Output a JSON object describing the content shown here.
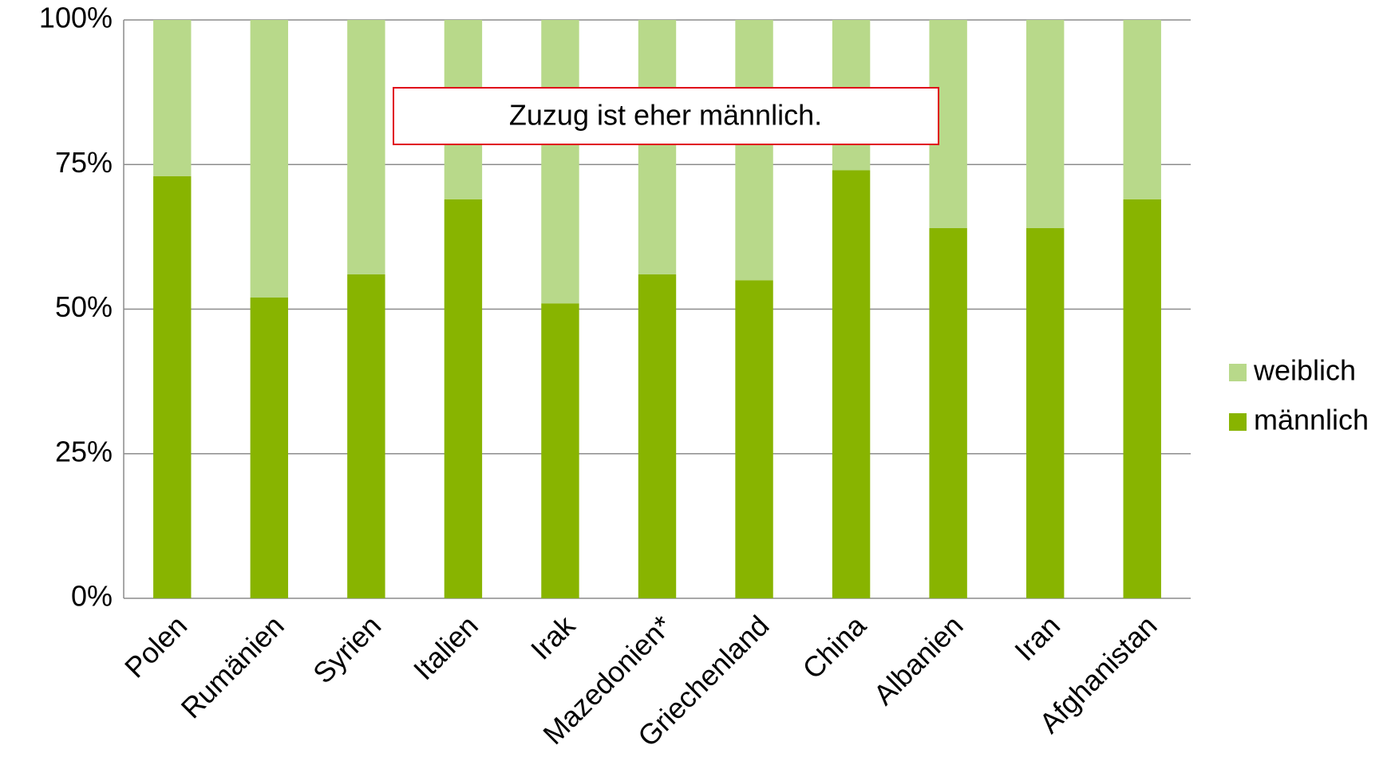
{
  "chart_data": {
    "type": "stacked_bar",
    "annotation": "Zuzug ist eher männlich.",
    "categories": [
      "Polen",
      "Rumänien",
      "Syrien",
      "Italien",
      "Irak",
      "Mazedonien*",
      "Griechenland",
      "China",
      "Albanien",
      "Iran",
      "Afghanistan"
    ],
    "series": [
      {
        "name": "männlich",
        "color": "#88b400",
        "values": [
          73,
          52,
          56,
          69,
          51,
          56,
          55,
          74,
          64,
          64,
          69
        ]
      },
      {
        "name": "weiblich",
        "color": "#b8d98a",
        "values": [
          27,
          48,
          44,
          31,
          49,
          44,
          45,
          26,
          36,
          36,
          31
        ]
      }
    ],
    "ylim": [
      0,
      100
    ],
    "yticks": [
      {
        "value": 0,
        "label": "0%"
      },
      {
        "value": 25,
        "label": "25%"
      },
      {
        "value": 50,
        "label": "50%"
      },
      {
        "value": 75,
        "label": "75%"
      },
      {
        "value": 100,
        "label": "100%"
      }
    ],
    "grid": true,
    "legend": "right"
  }
}
